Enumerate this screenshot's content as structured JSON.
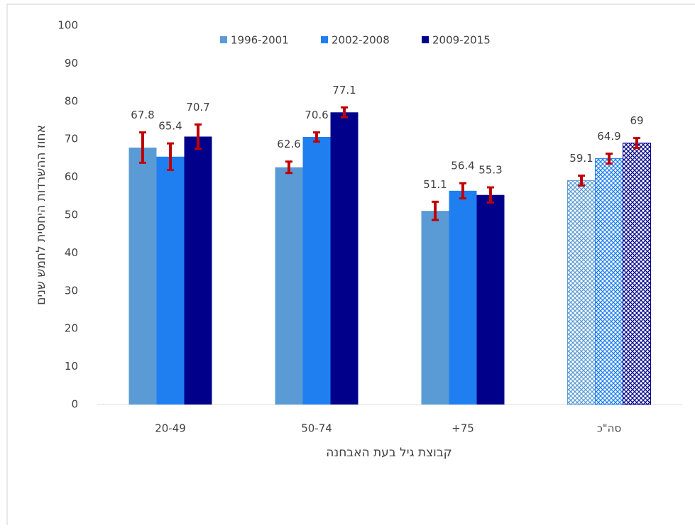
{
  "chart_data": {
    "type": "bar",
    "x_label": "קבוצת גיל בעת האבחנה",
    "y_label": "אחוז ההשרדות היחסית לחמש שנים",
    "categories": [
      "20-49",
      "50-74",
      "+75",
      "סה\"כ"
    ],
    "series": [
      {
        "name": "1996-2001",
        "color": "#5b9bd5",
        "values": [
          67.8,
          62.6,
          51.1,
          59.1
        ],
        "errors": [
          4,
          1.5,
          2.4,
          1.3
        ]
      },
      {
        "name": "2002-2008",
        "color": "#1f7ff0",
        "values": [
          65.4,
          70.6,
          56.4,
          64.9
        ],
        "errors": [
          3.5,
          1.2,
          2,
          1.3
        ]
      },
      {
        "name": "2009-2015",
        "color": "#00008b",
        "values": [
          70.7,
          77.1,
          55.3,
          69
        ],
        "errors": [
          3.2,
          1.3,
          2,
          1.3
        ]
      }
    ],
    "error_color": "#c00000",
    "hatched_category": 3,
    "ylim": [
      0,
      100
    ],
    "yticks": [
      0,
      10,
      20,
      30,
      40,
      50,
      60,
      70,
      80,
      90,
      100
    ],
    "legend": "top"
  }
}
